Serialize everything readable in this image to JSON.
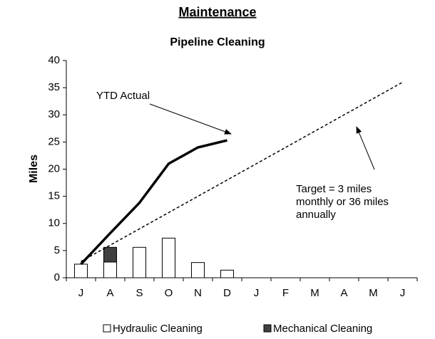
{
  "chart_data": {
    "type": "bar",
    "title": "Maintenance",
    "subtitle": "Pipeline Cleaning",
    "y_label": "Miles",
    "categories": [
      "J",
      "A",
      "S",
      "O",
      "N",
      "D",
      "J",
      "F",
      "M",
      "A",
      "M",
      "J"
    ],
    "stacked": true,
    "series": [
      {
        "name": "Hydraulic Cleaning",
        "color": "#ffffff",
        "values": [
          2.5,
          2.9,
          5.6,
          7.3,
          2.8,
          1.4,
          null,
          null,
          null,
          null,
          null,
          null
        ]
      },
      {
        "name": "Mechanical Cleaning",
        "color": "#404040",
        "values": [
          null,
          2.7,
          null,
          null,
          null,
          null,
          null,
          null,
          null,
          null,
          null,
          null
        ]
      }
    ],
    "line_series": [
      {
        "color": "#000000",
        "dashed": false,
        "values": [
          2.5,
          8.2,
          13.8,
          21,
          24,
          25.3,
          null,
          null,
          null,
          null,
          null,
          null
        ]
      },
      {
        "color": "#000000",
        "dashed": true,
        "values": [
          3,
          6,
          9,
          12,
          15,
          18,
          21,
          24,
          27,
          30,
          33,
          36
        ]
      }
    ],
    "annotations": [
      {
        "lines": [
          "YTD Actual"
        ]
      },
      {
        "lines": [
          "Target = 3 miles",
          "monthly or 36 miles",
          "annually"
        ]
      }
    ],
    "ylim": [
      0,
      40
    ],
    "yticks": [
      0,
      5,
      10,
      15,
      20,
      25,
      30,
      35,
      40
    ],
    "grid": false
  }
}
